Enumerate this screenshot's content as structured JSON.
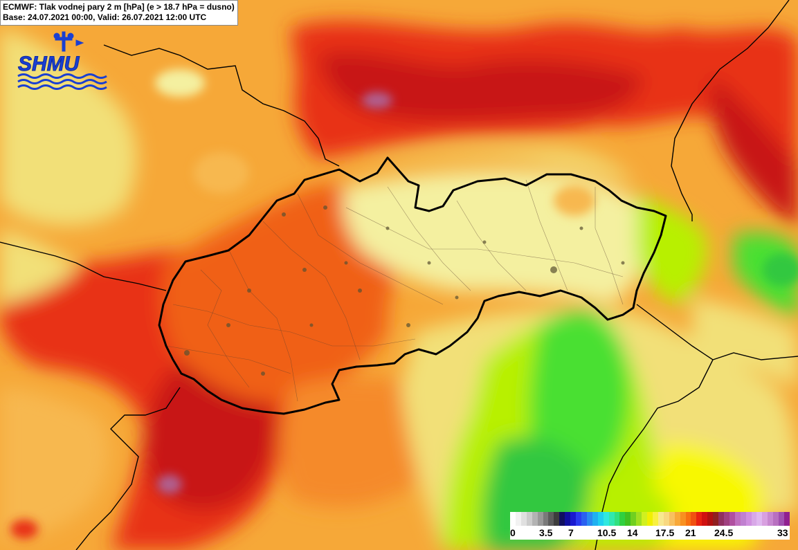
{
  "header": {
    "title_line1": "ECMWF: Tlak vodnej pary 2 m [hPa] (e > 18.7 hPa = dusno)",
    "title_line2": "Base: 24.07.2021 00:00, Valid: 26.07.2021 12:00 UTC"
  },
  "logo": {
    "text": "SHMU",
    "color": "#1a3fd1"
  },
  "legend": {
    "ticks": [
      "0",
      "3.5",
      "7",
      "10.5",
      "14",
      "17.5",
      "21",
      "24.5",
      "33"
    ],
    "colors": [
      "#ffffff",
      "#f2f2f2",
      "#e0e0e0",
      "#cccccc",
      "#b3b3b3",
      "#999999",
      "#7a7a7a",
      "#5c5c5c",
      "#3d3d3d",
      "#101060",
      "#1010a0",
      "#1a1ad0",
      "#2a3cf0",
      "#2a60f0",
      "#2a8af0",
      "#20b0f0",
      "#20d0f0",
      "#30e8e0",
      "#30e8b0",
      "#30e080",
      "#30d040",
      "#40c020",
      "#70d020",
      "#a0e020",
      "#d0f020",
      "#f0f000",
      "#f8f040",
      "#f8e890",
      "#f8d880",
      "#f8c060",
      "#f8a838",
      "#f89020",
      "#f87010",
      "#f05010",
      "#e82010",
      "#d01010",
      "#b01010",
      "#902020",
      "#903060",
      "#a04080",
      "#b050a0",
      "#c070c0",
      "#c080d0",
      "#d090e0",
      "#d8a8e8",
      "#e0b8f0",
      "#d8a0e0",
      "#c888d0",
      "#b870c0",
      "#a050b0",
      "#902090"
    ]
  },
  "map": {
    "colors": {
      "background": "#f6a838",
      "deep_red": "#c81818",
      "red": "#e83018",
      "orange_red": "#f06018",
      "orange": "#f58a2a",
      "light_orange": "#f7b850",
      "pale_yellow": "#f2e078",
      "pale": "#f4f0a0",
      "yellow": "#f8f800",
      "green_yellow": "#b8f000",
      "green": "#48e030",
      "green_dark": "#30c840",
      "purple": "#b06090",
      "border": "#000000"
    }
  }
}
